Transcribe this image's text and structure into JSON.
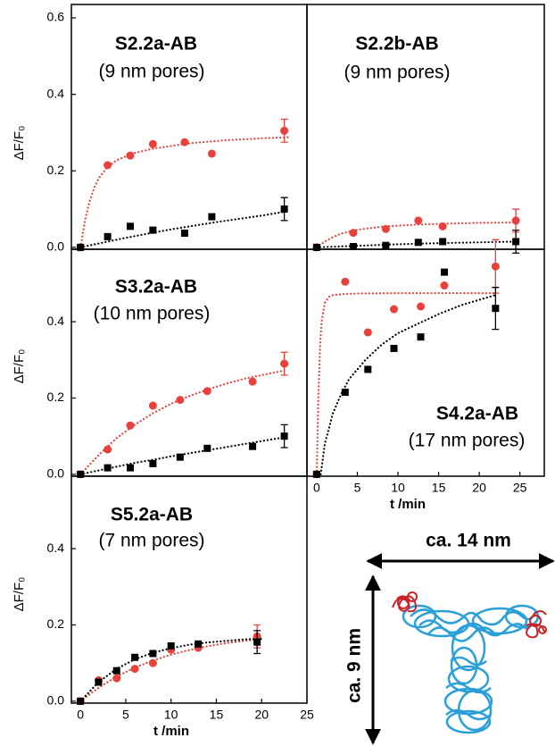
{
  "chart_data": [
    {
      "type": "scatter",
      "title": "S2.2a-AB",
      "subtitle": "(9 nm pores)",
      "ylabel": "ΔF/F₀",
      "xlim": [
        -1,
        25
      ],
      "ylim": [
        -0.005,
        0.635
      ],
      "yticks": [
        {
          "value": 0,
          "label": "0.0"
        },
        0.2,
        0.4,
        0.6
      ],
      "series": [
        {
          "color": "#e8413c",
          "marker": "circle",
          "x": [
            0,
            3,
            5.5,
            8,
            11.5,
            14.5,
            22.5
          ],
          "values": [
            0,
            0.215,
            0.24,
            0.27,
            0.275,
            0.245,
            0.305
          ],
          "errors": [
            null,
            null,
            null,
            null,
            null,
            null,
            0.03
          ]
        },
        {
          "color": "#000000",
          "marker": "square",
          "x": [
            0,
            3,
            5.5,
            8,
            11.5,
            14.5,
            22.5
          ],
          "values": [
            0,
            0.028,
            0.055,
            0.045,
            0.037,
            0.08,
            0.1
          ],
          "errors": [
            null,
            null,
            null,
            null,
            null,
            null,
            0.03
          ]
        },
        {
          "color": "#e8413c",
          "line": "dotted",
          "x": [
            0,
            0.5,
            1,
            1.5,
            2,
            3,
            4,
            6,
            8,
            12,
            16,
            20,
            23
          ],
          "values": [
            0,
            0.07,
            0.12,
            0.155,
            0.18,
            0.21,
            0.228,
            0.247,
            0.258,
            0.272,
            0.28,
            0.285,
            0.288
          ]
        },
        {
          "color": "#000000",
          "line": "dotted",
          "x": [
            0,
            5,
            10,
            15,
            20,
            23
          ],
          "values": [
            0,
            0.025,
            0.047,
            0.066,
            0.083,
            0.095
          ]
        }
      ]
    },
    {
      "type": "scatter",
      "title": "S2.2b-AB",
      "subtitle": "(9 nm pores)",
      "xlim": [
        -1.2,
        28
      ],
      "ylim": [
        -0.005,
        0.635
      ],
      "series": [
        {
          "color": "#e8413c",
          "marker": "circle",
          "x": [
            0,
            4.5,
            8.5,
            12.5,
            15.5,
            24.5
          ],
          "values": [
            0,
            0.038,
            0.048,
            0.07,
            0.055,
            0.07
          ],
          "errors": [
            null,
            null,
            null,
            null,
            null,
            0.03
          ]
        },
        {
          "color": "#000000",
          "marker": "square",
          "x": [
            0,
            4.5,
            8.5,
            12.5,
            15.5,
            24.5
          ],
          "values": [
            0,
            0.002,
            0.005,
            0.013,
            0.015,
            0.015
          ],
          "errors": [
            null,
            null,
            null,
            null,
            null,
            0.03
          ]
        },
        {
          "color": "#e8413c",
          "line": "dotted",
          "x": [
            0,
            1,
            2,
            3,
            5,
            8,
            12,
            16,
            20,
            24.5
          ],
          "values": [
            0,
            0.015,
            0.027,
            0.036,
            0.046,
            0.054,
            0.059,
            0.062,
            0.064,
            0.065
          ]
        },
        {
          "color": "#000000",
          "line": "dotted",
          "x": [
            0,
            5,
            10,
            15,
            20,
            24.5
          ],
          "values": [
            0,
            0.004,
            0.008,
            0.011,
            0.013,
            0.015
          ]
        }
      ]
    },
    {
      "type": "scatter",
      "title": "S3.2a-AB",
      "subtitle": "(10 nm pores)",
      "ylabel": "ΔF/F₀",
      "xlim": [
        -1,
        25
      ],
      "ylim": [
        -0.005,
        0.59
      ],
      "yticks": [
        {
          "value": 0,
          "label": "0.0"
        },
        0.2,
        0.4
      ],
      "series": [
        {
          "color": "#e8413c",
          "marker": "circle",
          "x": [
            0,
            3,
            5.5,
            8,
            11,
            14,
            19,
            22.5
          ],
          "values": [
            0,
            0.065,
            0.128,
            0.18,
            0.195,
            0.218,
            0.243,
            0.29
          ],
          "errors": [
            null,
            null,
            null,
            null,
            null,
            null,
            null,
            0.03
          ]
        },
        {
          "color": "#000000",
          "marker": "square",
          "x": [
            0,
            3,
            5.5,
            8,
            11,
            14,
            19,
            22.5
          ],
          "values": [
            0,
            0.017,
            0.017,
            0.028,
            0.045,
            0.068,
            0.073,
            0.1
          ],
          "errors": [
            null,
            null,
            null,
            null,
            null,
            null,
            null,
            0.03
          ]
        },
        {
          "color": "#e8413c",
          "line": "dotted",
          "x": [
            0,
            2,
            4,
            6,
            8,
            10,
            12,
            14,
            16,
            18,
            20,
            22.5
          ],
          "values": [
            0,
            0.05,
            0.095,
            0.13,
            0.16,
            0.185,
            0.205,
            0.222,
            0.237,
            0.25,
            0.26,
            0.272
          ]
        },
        {
          "color": "#000000",
          "line": "dotted",
          "x": [
            0,
            2,
            4,
            6,
            8,
            10,
            12,
            14,
            16,
            18,
            20,
            22.5
          ],
          "values": [
            0,
            0.01,
            0.02,
            0.03,
            0.038,
            0.047,
            0.055,
            0.063,
            0.071,
            0.079,
            0.087,
            0.097
          ]
        }
      ]
    },
    {
      "type": "scatter",
      "title": "S4.2a-AB",
      "subtitle": "(17 nm pores)",
      "xlabel": "t /min",
      "xlim": [
        -1.2,
        28
      ],
      "ylim": [
        -0.005,
        0.59
      ],
      "xticks": [
        0,
        5,
        10,
        15,
        20,
        25
      ],
      "series": [
        {
          "color": "#e8413c",
          "marker": "circle",
          "x": [
            0,
            3.5,
            6.3,
            9.5,
            12.8,
            15.7,
            22
          ],
          "values": [
            0,
            0.505,
            0.372,
            0.433,
            0.44,
            0.495,
            0.545
          ],
          "errors": [
            null,
            null,
            null,
            null,
            null,
            null,
            0.07
          ]
        },
        {
          "color": "#000000",
          "marker": "square",
          "x": [
            0,
            3.5,
            6.3,
            9.5,
            12.8,
            15.7,
            22
          ],
          "values": [
            0,
            0.215,
            0.275,
            0.33,
            0.36,
            0.53,
            0.435
          ],
          "errors": [
            null,
            null,
            null,
            null,
            null,
            null,
            0.055
          ]
        },
        {
          "color": "#e8413c",
          "line": "dotted",
          "x": [
            0,
            0.2,
            0.4,
            0.6,
            1,
            1.5,
            2,
            3,
            5,
            10,
            22
          ],
          "values": [
            0,
            0.2,
            0.33,
            0.4,
            0.45,
            0.465,
            0.47,
            0.472,
            0.474,
            0.475,
            0.475
          ]
        },
        {
          "color": "#000000",
          "line": "dotted",
          "x": [
            0.5,
            1,
            2,
            3,
            4,
            6,
            8,
            10,
            12,
            15,
            18,
            22
          ],
          "values": [
            0,
            0.08,
            0.16,
            0.21,
            0.25,
            0.3,
            0.34,
            0.37,
            0.39,
            0.42,
            0.445,
            0.47
          ]
        }
      ]
    },
    {
      "type": "scatter",
      "title": "S5.2a-AB",
      "subtitle": "(7 nm pores)",
      "ylabel": "ΔF/F₀",
      "xlabel": "t /min",
      "xlim": [
        -1,
        25
      ],
      "ylim": [
        -0.005,
        0.59
      ],
      "yticks": [
        {
          "value": 0,
          "label": "0.0"
        },
        0.2,
        0.4
      ],
      "xticks": [
        0,
        5,
        10,
        15,
        20,
        25
      ],
      "series": [
        {
          "color": "#e8413c",
          "marker": "circle",
          "x": [
            0,
            2,
            4,
            6,
            8,
            10,
            13,
            19.5
          ],
          "values": [
            0,
            0.055,
            0.06,
            0.085,
            0.1,
            0.135,
            0.14,
            0.17
          ],
          "errors": [
            null,
            null,
            null,
            null,
            null,
            null,
            null,
            0.03
          ]
        },
        {
          "color": "#000000",
          "marker": "square",
          "x": [
            0,
            2,
            4,
            6,
            8,
            10,
            13,
            19.5
          ],
          "values": [
            0,
            0.05,
            0.08,
            0.115,
            0.125,
            0.145,
            0.15,
            0.155
          ],
          "errors": [
            null,
            null,
            null,
            null,
            null,
            null,
            null,
            0.03
          ]
        },
        {
          "color": "#e8413c",
          "line": "dotted",
          "x": [
            0,
            2,
            4,
            6,
            8,
            10,
            12,
            14,
            16,
            18,
            20
          ],
          "values": [
            0,
            0.035,
            0.065,
            0.088,
            0.107,
            0.122,
            0.134,
            0.144,
            0.152,
            0.158,
            0.163
          ]
        },
        {
          "color": "#000000",
          "line": "dotted",
          "x": [
            0,
            2,
            4,
            6,
            8,
            10,
            12,
            14,
            16,
            18,
            20
          ],
          "values": [
            0,
            0.05,
            0.085,
            0.11,
            0.127,
            0.139,
            0.148,
            0.154,
            0.158,
            0.162,
            0.164
          ]
        }
      ]
    }
  ],
  "diagram": {
    "width_label": "ca. 14 nm",
    "height_label": "ca. 9 nm"
  }
}
